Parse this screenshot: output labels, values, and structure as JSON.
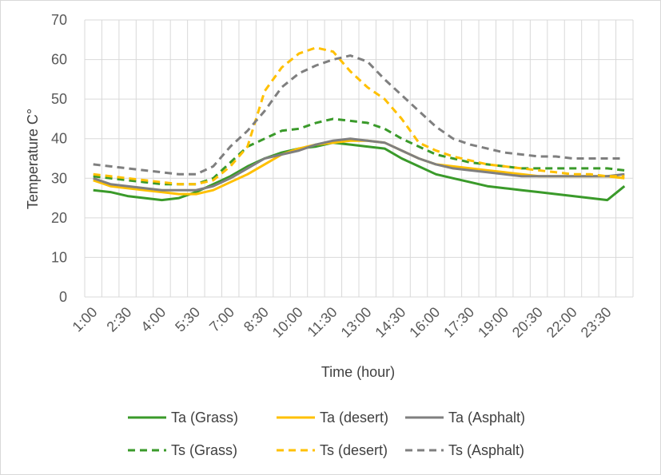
{
  "chart_data": {
    "type": "line",
    "title": "",
    "xlabel": "Time (hour)",
    "ylabel": "Temperature C°",
    "ylim": [
      0,
      70
    ],
    "yticks": [
      0,
      10,
      20,
      30,
      40,
      50,
      60,
      70
    ],
    "grid": true,
    "legend_position": "bottom",
    "x": [
      "1:00",
      "1:45",
      "2:30",
      "3:15",
      "4:00",
      "4:45",
      "5:30",
      "6:15",
      "7:00",
      "7:45",
      "8:30",
      "9:15",
      "10:00",
      "10:45",
      "11:30",
      "12:15",
      "13:00",
      "13:45",
      "14:30",
      "15:15",
      "16:00",
      "16:45",
      "17:30",
      "18:15",
      "19:00",
      "19:45",
      "20:30",
      "21:15",
      "22:00",
      "22:45",
      "23:30",
      "0:15"
    ],
    "x_tick_labels": [
      "1:00",
      "2:30",
      "4:00",
      "5:30",
      "7:00",
      "8:30",
      "10:00",
      "11:30",
      "13:00",
      "14:30",
      "16:00",
      "17:30",
      "19:00",
      "20:30",
      "22:00",
      "23:30"
    ],
    "series": [
      {
        "name": "Ta (Grass)",
        "color": "#3a9a2a",
        "dash": "solid",
        "values": [
          27,
          26.5,
          25.5,
          25,
          24.5,
          25,
          26.5,
          28.5,
          30.5,
          33,
          35,
          36.5,
          37.5,
          38,
          39,
          38.5,
          38,
          37.5,
          35,
          33,
          31,
          30,
          29,
          28,
          27.5,
          27,
          26.5,
          26,
          25.5,
          25,
          24.5,
          28
        ]
      },
      {
        "name": "Ta (desert)",
        "color": "#ffc000",
        "dash": "solid",
        "values": [
          29.5,
          28,
          27.5,
          27,
          26.5,
          26,
          26,
          27,
          29,
          31,
          33.5,
          36,
          37.5,
          38.5,
          39,
          39.5,
          39.5,
          39,
          37,
          35,
          33.5,
          33,
          32.5,
          32,
          31.5,
          31,
          30.5,
          30.5,
          30.5,
          30.5,
          30.5,
          30
        ]
      },
      {
        "name": "Ta (Asphalt)",
        "color": "#7f7f7f",
        "dash": "solid",
        "values": [
          30,
          28.5,
          28,
          27.5,
          27,
          27,
          27,
          28,
          30,
          32.5,
          35,
          36,
          37,
          38.5,
          39.5,
          40,
          39.5,
          39,
          37,
          35,
          33.5,
          32.5,
          32,
          31.5,
          31,
          30.5,
          30.5,
          30.5,
          30.5,
          30.5,
          30.5,
          31
        ]
      },
      {
        "name": "Ts (Grass)",
        "color": "#3a9a2a",
        "dash": "dashed",
        "values": [
          30.5,
          30,
          29.5,
          29,
          28.5,
          28.5,
          28.5,
          30,
          34,
          38,
          40,
          42,
          42.5,
          44,
          45,
          44.5,
          44,
          42.5,
          40,
          38,
          36,
          35,
          34,
          33.5,
          33,
          32.5,
          32.5,
          32.5,
          32.5,
          32.5,
          32.5,
          32
        ]
      },
      {
        "name": "Ts (desert)",
        "color": "#ffc000",
        "dash": "dashed",
        "values": [
          31,
          30.5,
          30,
          29.5,
          29,
          28.5,
          28.5,
          29.5,
          33,
          38,
          52,
          58,
          61.5,
          63,
          62,
          57,
          53,
          50,
          45,
          39,
          37,
          35.5,
          34.5,
          33.5,
          33,
          32.5,
          32,
          31.5,
          31,
          31,
          30.5,
          30.5
        ]
      },
      {
        "name": "Ts (Asphalt)",
        "color": "#7f7f7f",
        "dash": "dashed",
        "values": [
          33.5,
          33,
          32.5,
          32,
          31.5,
          31,
          31,
          33,
          38,
          42,
          47,
          53,
          56.5,
          58.5,
          60,
          61,
          59.5,
          55,
          51,
          47,
          43,
          40,
          38.5,
          37.5,
          36.5,
          36,
          35.5,
          35.5,
          35,
          35,
          35,
          35
        ]
      }
    ]
  }
}
